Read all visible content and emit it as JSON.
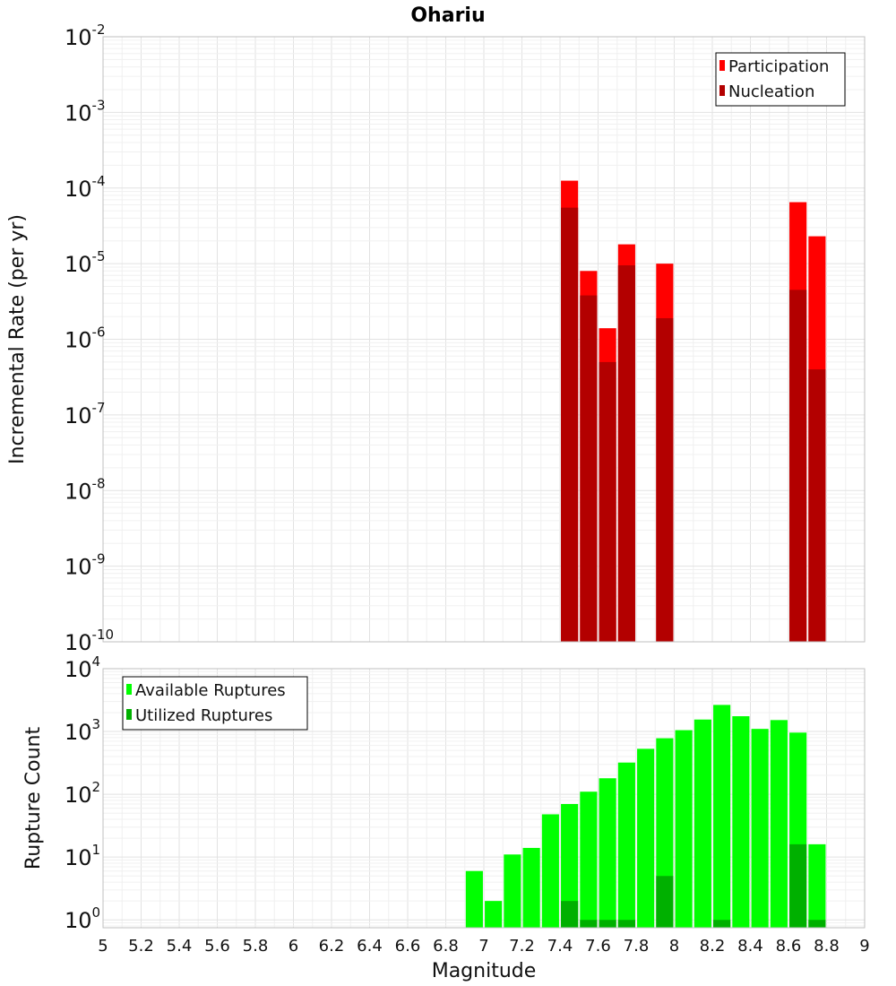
{
  "chart_data": [
    {
      "type": "bar",
      "title": "Ohariu",
      "xlabel": "",
      "ylabel": "Incremental Rate (per yr)",
      "yscale": "log",
      "xlim": [
        5,
        9
      ],
      "ylim": [
        1e-10,
        0.01
      ],
      "y_ticks": [
        {
          "base": "10",
          "exp": "-10"
        },
        {
          "base": "10",
          "exp": "-9"
        },
        {
          "base": "10",
          "exp": "-8"
        },
        {
          "base": "10",
          "exp": "-7"
        },
        {
          "base": "10",
          "exp": "-6"
        },
        {
          "base": "10",
          "exp": "-5"
        },
        {
          "base": "10",
          "exp": "-4"
        },
        {
          "base": "10",
          "exp": "-3"
        },
        {
          "base": "10",
          "exp": "-2"
        }
      ],
      "grid": true,
      "legend_position": "top-right",
      "bar_width": 0.09,
      "series": [
        {
          "name": "Participation",
          "color": "#ff0000",
          "x": [
            7.45,
            7.55,
            7.65,
            7.75,
            7.95,
            8.65,
            8.75
          ],
          "values": [
            0.000125,
            8e-06,
            1.4e-06,
            1.8e-05,
            1e-05,
            6.5e-05,
            2.3e-05
          ]
        },
        {
          "name": "Nucleation",
          "color": "#b30000",
          "x": [
            7.45,
            7.55,
            7.65,
            7.75,
            7.95,
            8.65,
            8.75
          ],
          "values": [
            5.5e-05,
            3.8e-06,
            5e-07,
            9.5e-06,
            1.9e-06,
            4.5e-06,
            4e-07
          ]
        }
      ]
    },
    {
      "type": "bar",
      "title": "",
      "xlabel": "Magnitude",
      "ylabel": "Rupture Count",
      "yscale": "log",
      "xlim": [
        5,
        9
      ],
      "ylim": [
        0.75,
        10000.0
      ],
      "x_ticks": [
        "5",
        "5.2",
        "5.4",
        "5.6",
        "5.8",
        "6",
        "6.2",
        "6.4",
        "6.6",
        "6.8",
        "7",
        "7.2",
        "7.4",
        "7.6",
        "7.8",
        "8",
        "8.2",
        "8.4",
        "8.6",
        "8.8",
        "9"
      ],
      "y_ticks": [
        {
          "base": "10",
          "exp": "0"
        },
        {
          "base": "10",
          "exp": "1"
        },
        {
          "base": "10",
          "exp": "2"
        },
        {
          "base": "10",
          "exp": "3"
        },
        {
          "base": "10",
          "exp": "4"
        }
      ],
      "grid": true,
      "legend_position": "top-left",
      "bar_width": 0.09,
      "series": [
        {
          "name": "Available Ruptures",
          "color": "#00ff00",
          "x": [
            6.95,
            7.05,
            7.15,
            7.25,
            7.35,
            7.45,
            7.55,
            7.65,
            7.75,
            7.85,
            7.95,
            8.05,
            8.15,
            8.25,
            8.35,
            8.45,
            8.55,
            8.65,
            8.75
          ],
          "values": [
            6,
            2,
            11,
            14,
            48,
            70,
            110,
            180,
            320,
            530,
            780,
            1050,
            1550,
            2650,
            1750,
            1100,
            1520,
            960,
            16
          ]
        },
        {
          "name": "Utilized Ruptures",
          "color": "#00b000",
          "x": [
            7.45,
            7.55,
            7.65,
            7.75,
            7.95,
            8.25,
            8.65,
            8.75
          ],
          "values": [
            2,
            1,
            1,
            1,
            5,
            1,
            16,
            1
          ]
        }
      ]
    }
  ]
}
